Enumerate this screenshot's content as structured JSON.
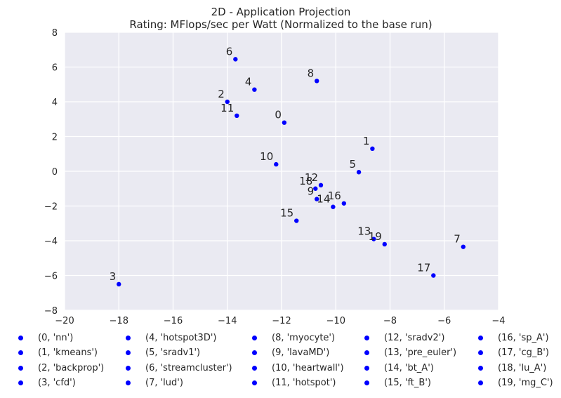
{
  "chart_data": {
    "type": "scatter",
    "title": "2D - Application Projection",
    "subtitle": "Rating: MFlops/sec per Watt (Normalized to the base run)",
    "xlabel": "",
    "ylabel": "",
    "xlim": [
      -20,
      -4
    ],
    "ylim": [
      -8,
      8
    ],
    "xticks": [
      "−20",
      "−18",
      "−16",
      "−14",
      "−12",
      "−10",
      "−8",
      "−6",
      "−4"
    ],
    "yticks": [
      "8",
      "6",
      "4",
      "2",
      "0",
      "−2",
      "−4",
      "−6",
      "−8"
    ],
    "grid": true,
    "legend_placement": "bottom",
    "colors": {
      "point": "#0000ff",
      "background": "#eaeaf2",
      "grid": "#ffffff"
    },
    "points": [
      {
        "id": "0",
        "x": -11.9,
        "y": 2.8
      },
      {
        "id": "1",
        "x": -8.65,
        "y": 1.3
      },
      {
        "id": "2",
        "x": -14.0,
        "y": 4.0
      },
      {
        "id": "3",
        "x": -18.0,
        "y": -6.5
      },
      {
        "id": "4",
        "x": -13.0,
        "y": 4.7
      },
      {
        "id": "5",
        "x": -9.15,
        "y": -0.05
      },
      {
        "id": "6",
        "x": -13.7,
        "y": 6.45
      },
      {
        "id": "7",
        "x": -5.3,
        "y": -4.35
      },
      {
        "id": "8",
        "x": -10.7,
        "y": 5.2
      },
      {
        "id": "9",
        "x": -10.7,
        "y": -1.6
      },
      {
        "id": "10",
        "x": -12.2,
        "y": 0.4
      },
      {
        "id": "11",
        "x": -13.65,
        "y": 3.2
      },
      {
        "id": "12",
        "x": -10.55,
        "y": -0.8
      },
      {
        "id": "13",
        "x": -8.6,
        "y": -3.9
      },
      {
        "id": "14",
        "x": -10.1,
        "y": -2.05
      },
      {
        "id": "15",
        "x": -11.45,
        "y": -2.85
      },
      {
        "id": "16",
        "x": -9.7,
        "y": -1.85
      },
      {
        "id": "17",
        "x": -6.4,
        "y": -6.0
      },
      {
        "id": "18",
        "x": -10.75,
        "y": -1.0
      },
      {
        "id": "19",
        "x": -8.2,
        "y": -4.2
      }
    ],
    "legend": [
      "(0, 'nn')",
      "(1, 'kmeans')",
      "(2, 'backprop')",
      "(3, 'cfd')",
      "(4, 'hotspot3D')",
      "(5, 'sradv1')",
      "(6, 'streamcluster')",
      "(7, 'lud')",
      "(8, 'myocyte')",
      "(9, 'lavaMD')",
      "(10, 'heartwall')",
      "(11, 'hotspot')",
      "(12, 'sradv2')",
      "(13, 'pre_euler')",
      "(14, 'bt_A')",
      "(15, 'ft_B')",
      "(16, 'sp_A')",
      "(17, 'cg_B')",
      "(18, 'lu_A')",
      "(19, 'mg_C')"
    ]
  }
}
